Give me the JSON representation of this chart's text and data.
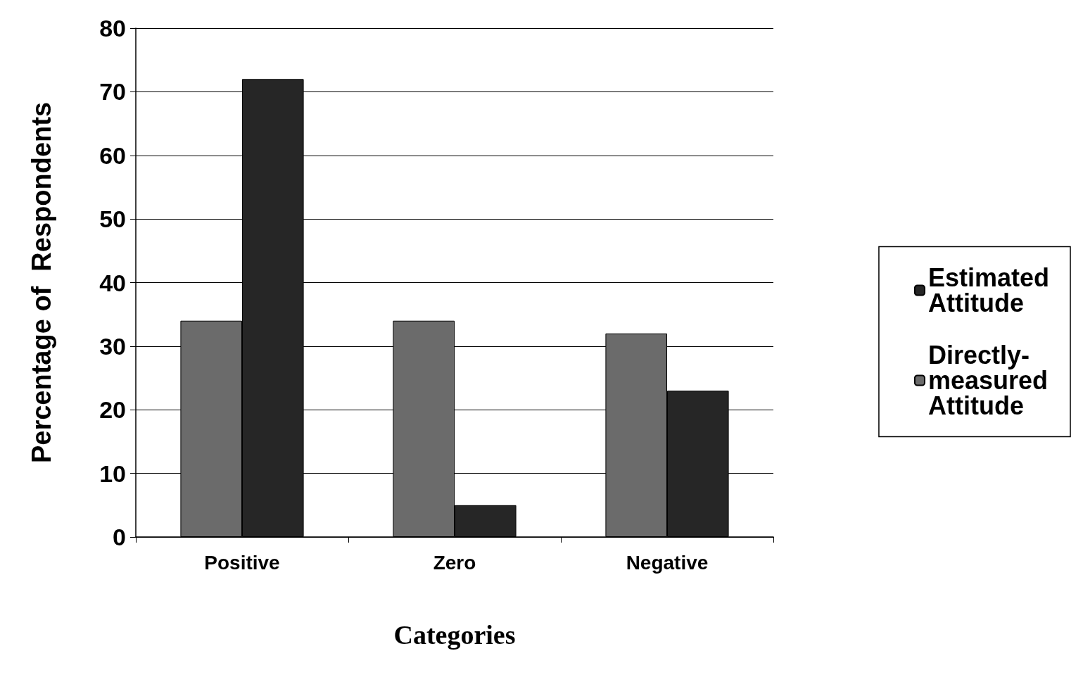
{
  "chart_data": {
    "type": "bar",
    "xlabel": "Categories",
    "ylabel": "Percentage of  Respondents",
    "categories": [
      "Positive",
      "Zero",
      "Negative"
    ],
    "series": [
      {
        "name": "Directly-measured Attitude",
        "color": "#6b6b6b",
        "values": [
          34,
          34,
          32
        ]
      },
      {
        "name": "Estimated Attitude",
        "color": "#262626",
        "values": [
          72,
          5,
          23
        ]
      }
    ],
    "ylim": [
      0,
      80
    ],
    "yticks": [
      0,
      10,
      20,
      30,
      40,
      50,
      60,
      70,
      80
    ],
    "grid": "y",
    "legend": "right"
  }
}
